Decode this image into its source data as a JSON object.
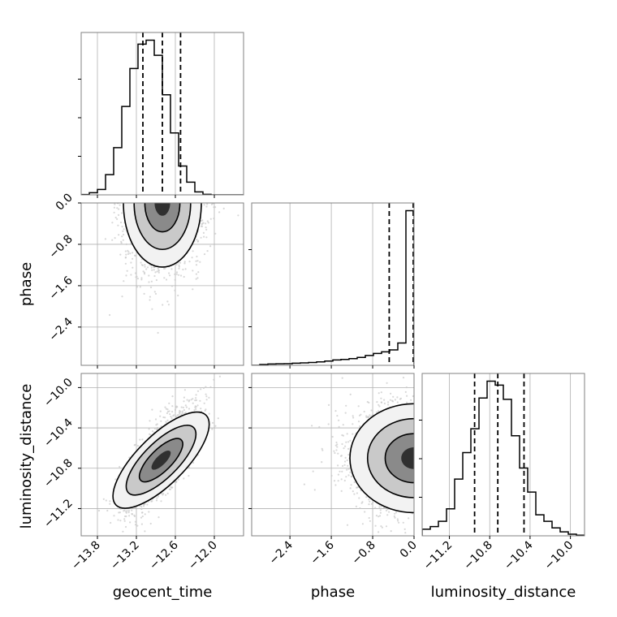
{
  "chart_data": {
    "type": "corner",
    "parameters": [
      "geocent_time",
      "phase",
      "luminosity_distance"
    ],
    "ranges": {
      "geocent_time": [
        -14.05,
        -11.55
      ],
      "phase": [
        -3.14,
        0.0
      ],
      "luminosity_distance": [
        -11.47,
        -9.86
      ]
    },
    "ticks": {
      "geocent_time": {
        "values": [
          -13.8,
          -13.2,
          -12.6,
          -12.0
        ],
        "labels": [
          "−13.8",
          "−13.2",
          "−12.6",
          "−12.0"
        ]
      },
      "phase": {
        "values": [
          -2.4,
          -1.6,
          -0.8,
          0.0
        ],
        "labels": [
          "−2.4",
          "−1.6",
          "−0.8",
          "0.0"
        ]
      },
      "luminosity_distance": {
        "values": [
          -11.2,
          -10.8,
          -10.4,
          -10.0
        ],
        "labels": [
          "−11.2",
          "−10.8",
          "−10.4",
          "−10.0"
        ]
      }
    },
    "quantiles": {
      "geocent_time": [
        -13.1,
        -12.8,
        -12.52
      ],
      "phase": [
        -0.48,
        0.0
      ],
      "luminosity_distance": [
        -10.95,
        -10.72,
        -10.46
      ]
    },
    "histograms": {
      "geocent_time": {
        "edges_start": -14.05,
        "bin_width": 0.125,
        "counts": [
          0.2,
          1.3,
          3.3,
          12.3,
          28.7,
          53.7,
          76.8,
          91.6,
          94.0,
          84.8,
          60.8,
          37.6,
          17.5,
          7.7,
          1.8,
          0.3,
          0,
          0,
          0,
          0
        ]
      },
      "phase": {
        "edges_start": -3.14,
        "bin_width": 0.157,
        "counts": [
          0,
          0.5,
          0.8,
          0.9,
          1.0,
          1.3,
          1.5,
          1.7,
          2.1,
          2.6,
          3.3,
          3.6,
          4.1,
          4.8,
          6.0,
          7.2,
          8.2,
          9.4,
          13.6,
          94.0
        ]
      },
      "luminosity_distance": {
        "edges_start": -11.47,
        "bin_width": 0.0805,
        "counts": [
          4.0,
          5.6,
          8.8,
          16.4,
          34.5,
          50.6,
          65.1,
          83.8,
          94.0,
          91.6,
          83.0,
          60.8,
          41.2,
          26.6,
          12.8,
          8.8,
          4.8,
          2.4,
          1.0,
          0.4
        ]
      }
    },
    "densities": {
      "phase_vs_geocent_time": {
        "center": [
          -12.8,
          0.0
        ],
        "sigma": [
          0.3,
          0.62
        ]
      },
      "luminosity_distance_vs_geocent_time": {
        "center": [
          -12.82,
          -10.72
        ],
        "sigma": [
          0.3,
          0.27
        ],
        "correlation": 0.75
      },
      "luminosity_distance_vs_phase": {
        "center": [
          0.0,
          -10.7
        ],
        "sigma": [
          0.62,
          0.27
        ]
      }
    },
    "grid": true,
    "quantile_line_style": "dashed",
    "sample_color": "#c8c8c8",
    "line_color": "#000000",
    "axis_color": "#808080",
    "grid_color": "#b0b0b0"
  }
}
